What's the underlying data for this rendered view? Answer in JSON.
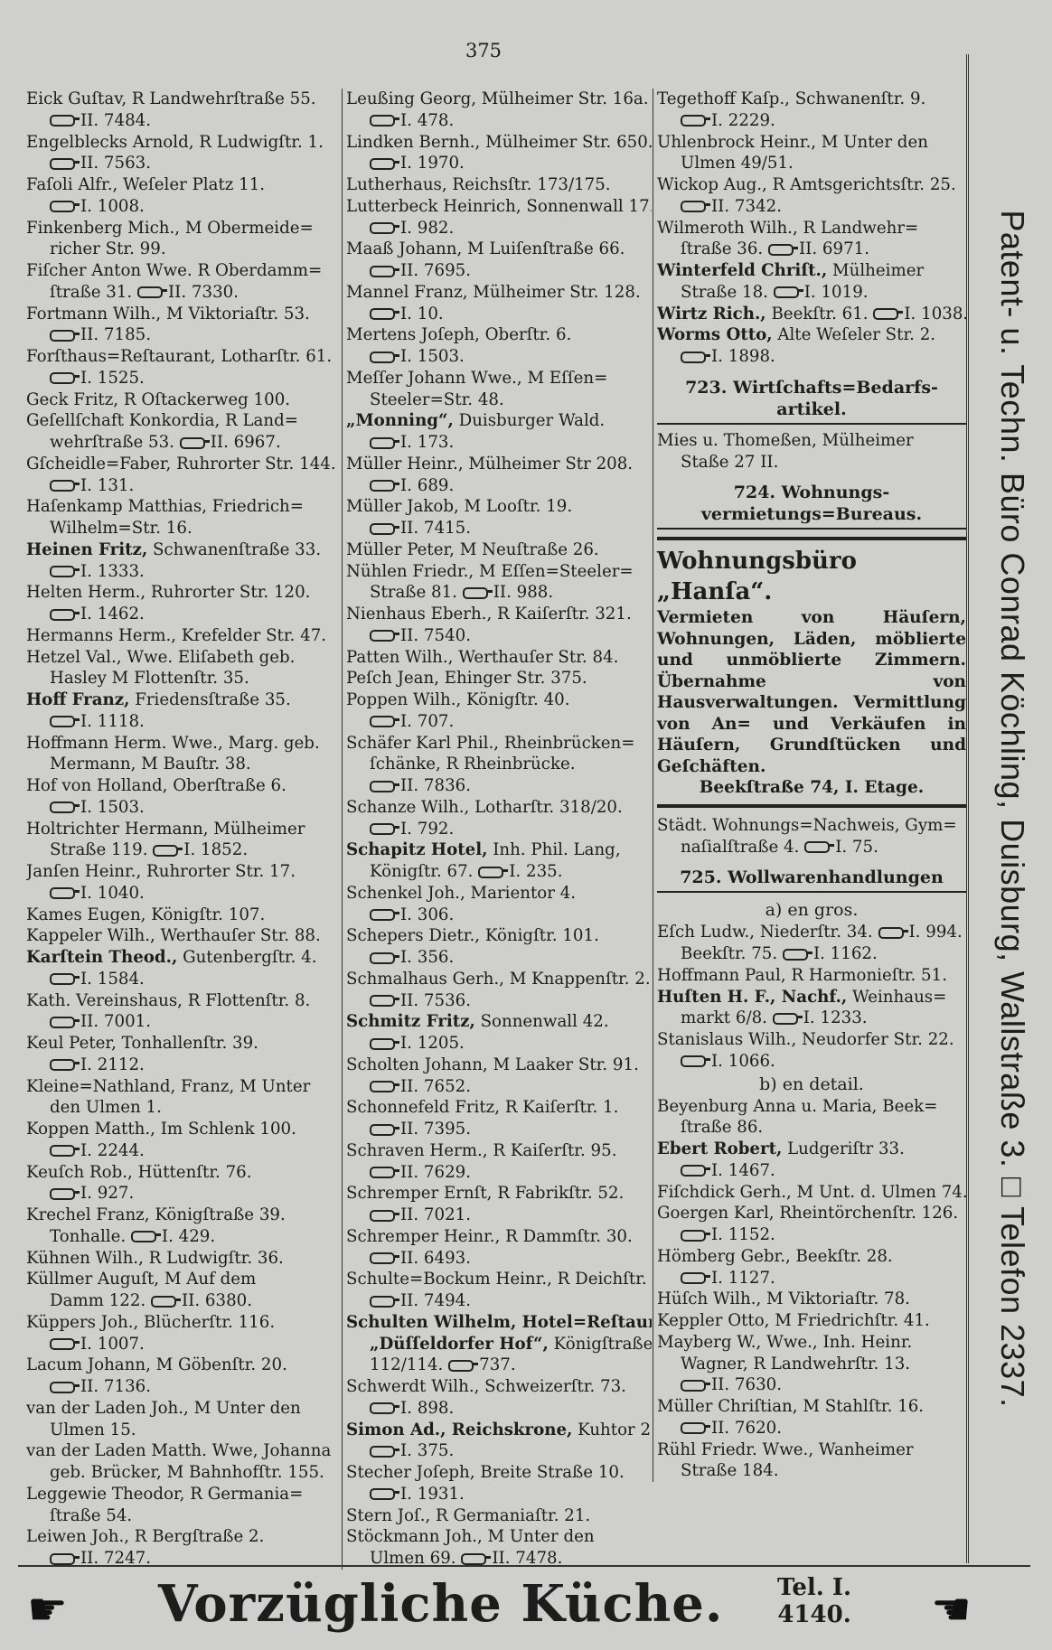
{
  "page_number": "375",
  "col1": [
    {
      "t": "Eick Guſtav, R Landwehrſtraße 55."
    },
    {
      "p": "II. 7484."
    },
    {
      "t": "Engelblecks Arnold, R Ludwigſtr. 1."
    },
    {
      "p": "II. 7563."
    },
    {
      "t": "Faſoli Alfr., Weſeler Platz 11."
    },
    {
      "p": "I. 1008."
    },
    {
      "t": "Finkenberg Mich., M Obermeide="
    },
    {
      "t": "richer Str. 99.",
      "i": 1
    },
    {
      "t": "Fiſcher Anton Wwe. R Oberdamm="
    },
    {
      "t": "ſtraße 31.",
      "p": "II. 7330.",
      "i": 1
    },
    {
      "t": "Fortmann Wilh., M Viktoriaſtr. 53."
    },
    {
      "p": "II. 7185."
    },
    {
      "t": "Forſthaus=Reſtaurant, Lotharſtr. 61."
    },
    {
      "p": "I. 1525."
    },
    {
      "t": "Geck Fritz, R Oſtackerweg 100."
    },
    {
      "t": "Geſellſchaft Konkordia, R Land="
    },
    {
      "t": "wehrſtraße 53.",
      "p": "II. 6967.",
      "i": 1
    },
    {
      "t": "Gſcheidle=Faber, Ruhrorter Str. 144."
    },
    {
      "p": "I. 131."
    },
    {
      "t": "Haſenkamp Matthias, Friedrich="
    },
    {
      "t": "Wilhelm=Str. 16.",
      "i": 1
    },
    {
      "b": "Heinen Fritz,",
      "t": " Schwanenſtraße 33."
    },
    {
      "p": "I. 1333."
    },
    {
      "t": "Helten Herm., Ruhrorter Str. 120."
    },
    {
      "p": "I. 1462."
    },
    {
      "t": "Hermanns Herm., Krefelder Str. 47."
    },
    {
      "t": "Hetzel Val., Wwe. Eliſabeth geb."
    },
    {
      "t": "Hasley M Flottenſtr. 35.",
      "i": 1
    },
    {
      "b": "Hoff Franz,",
      "t": " Friedensſtraße 35."
    },
    {
      "p": "I. 1118."
    },
    {
      "t": "Hoffmann Herm. Wwe., Marg. geb."
    },
    {
      "t": "Mermann, M Bauſtr. 38.",
      "i": 1
    },
    {
      "t": "Hof von Holland, Oberſtraße 6."
    },
    {
      "p": "I. 1503."
    },
    {
      "t": "Holtrichter Hermann, Mülheimer"
    },
    {
      "t": "Straße 119.",
      "p": "I. 1852.",
      "i": 1
    },
    {
      "t": "Janſen Heinr., Ruhrorter Str. 17."
    },
    {
      "p": "I. 1040."
    },
    {
      "t": "Kames Eugen, Königſtr. 107."
    },
    {
      "t": "Kappeler Wilh., Werthauſer Str. 88."
    },
    {
      "b": "Karſtein Theod.,",
      "t": " Gutenbergſtr. 4."
    },
    {
      "p": "I. 1584."
    },
    {
      "t": "Kath. Vereinshaus, R Flottenſtr. 8."
    },
    {
      "p": "II. 7001."
    },
    {
      "t": "Keul Peter, Tonhallenſtr. 39."
    },
    {
      "p": "I. 2112."
    },
    {
      "t": "Kleine=Nathland, Franz, M Unter"
    },
    {
      "t": "den Ulmen 1.",
      "i": 1
    },
    {
      "t": "Koppen Matth., Im Schlenk 100."
    },
    {
      "p": "I. 2244."
    },
    {
      "t": "Keuſch Rob., Hüttenſtr. 76."
    },
    {
      "p": "I. 927."
    },
    {
      "t": "Krechel Franz, Königſtraße 39."
    },
    {
      "t": "Tonhalle.",
      "p": "I. 429.",
      "i": 1
    },
    {
      "t": "Kühnen Wilh., R Ludwigſtr. 36."
    },
    {
      "t": "Küllmer Auguſt, M Auf dem"
    },
    {
      "t": "Damm 122.",
      "p": "II. 6380.",
      "i": 1
    },
    {
      "t": "Küppers Joh., Blücherſtr. 116."
    },
    {
      "p": "I. 1007."
    },
    {
      "t": "Lacum Johann, M Göbenſtr. 20."
    },
    {
      "p": "II. 7136."
    },
    {
      "t": "van der Laden Joh., M Unter den"
    },
    {
      "t": "Ulmen 15.",
      "i": 1
    },
    {
      "t": "van der Laden Matth. Wwe, Johanna"
    },
    {
      "t": "geb. Brücker, M Bahnhofſtr. 155.",
      "i": 1
    },
    {
      "t": "Leggewie Theodor, R Germania="
    },
    {
      "t": "ſtraße 54.",
      "i": 1
    },
    {
      "t": "Leiwen Joh., R Bergſtraße 2."
    },
    {
      "p": "II. 7247."
    }
  ],
  "col2": [
    {
      "t": "Leußing Georg, Mülheimer Str. 16a."
    },
    {
      "p": "I. 478."
    },
    {
      "t": "Lindken Bernh., Mülheimer Str. 650."
    },
    {
      "p": "I. 1970."
    },
    {
      "t": "Lutherhaus, Reichsſtr. 173/175."
    },
    {
      "t": "Lutterbeck Heinrich, Sonnenwall 17."
    },
    {
      "p": "I. 982."
    },
    {
      "t": "Maaß Johann, M Luiſenſtraße 66."
    },
    {
      "p": "II. 7695."
    },
    {
      "t": "Mannel Franz, Mülheimer Str. 128."
    },
    {
      "p": "I. 10."
    },
    {
      "t": "Mertens Joſeph, Oberſtr. 6."
    },
    {
      "p": "I. 1503."
    },
    {
      "t": "Meſſer Johann Wwe., M Eſſen="
    },
    {
      "t": "Steeler=Str. 48.",
      "i": 1
    },
    {
      "b": "„Monning“,",
      "t": " Duisburger Wald."
    },
    {
      "p": "I. 173."
    },
    {
      "t": "Müller Heinr., Mülheimer Str 208."
    },
    {
      "p": "I. 689."
    },
    {
      "t": "Müller Jakob, M Looſtr. 19."
    },
    {
      "p": "II. 7415."
    },
    {
      "t": "Müller Peter, M Neuſtraße 26."
    },
    {
      "t": "Nühlen Friedr., M Eſſen=Steeler="
    },
    {
      "t": "Straße 81.",
      "p": "II. 988.",
      "i": 1
    },
    {
      "t": "Nienhaus Eberh., R Kaiſerſtr. 321."
    },
    {
      "p": "II. 7540."
    },
    {
      "t": "Patten Wilh., Werthauſer Str. 84."
    },
    {
      "t": "Peſch Jean, Ehinger Str. 375."
    },
    {
      "t": "Poppen Wilh., Königſtr. 40."
    },
    {
      "p": "I. 707."
    },
    {
      "t": "Schäfer Karl Phil., Rheinbrücken="
    },
    {
      "t": "ſchänke, R Rheinbrücke.",
      "i": 1
    },
    {
      "p": "II. 7836."
    },
    {
      "t": "Schanze Wilh., Lotharſtr. 318/20."
    },
    {
      "p": "I. 792."
    },
    {
      "b": "Schapitz Hotel,",
      "t": " Inh. Phil. Lang,"
    },
    {
      "t": "Königſtr. 67.",
      "p": "I. 235.",
      "i": 1
    },
    {
      "t": "Schenkel Joh., Marientor 4."
    },
    {
      "p": "I. 306."
    },
    {
      "t": "Schepers Dietr., Königſtr. 101."
    },
    {
      "p": "I. 356."
    },
    {
      "t": "Schmalhaus Gerh., M Knappenſtr. 2."
    },
    {
      "p": "II. 7536."
    },
    {
      "b": "Schmitz Fritz,",
      "t": " Sonnenwall 42."
    },
    {
      "p": "I. 1205."
    },
    {
      "t": "Scholten Johann, M Laaker Str. 91."
    },
    {
      "p": "II. 7652."
    },
    {
      "t": "Schonnefeld Fritz, R Kaiſerſtr. 1."
    },
    {
      "p": "II. 7395."
    },
    {
      "t": "Schraven Herm., R Kaiſerſtr. 95."
    },
    {
      "p": "II. 7629."
    },
    {
      "t": "Schremper Ernſt, R Fabrikſtr. 52."
    },
    {
      "p": "II. 7021."
    },
    {
      "t": "Schremper Heinr., R Dammſtr. 30."
    },
    {
      "p": "II. 6493."
    },
    {
      "t": "Schulte=Bockum Heinr., R Deichſtr. 45"
    },
    {
      "p": "II. 7494."
    },
    {
      "b": "Schulten Wilhelm, Hotel=Reſtaur."
    },
    {
      "b": "„Düſſeldorfer Hof“,",
      "t": " Königſtraße",
      "i": 1
    },
    {
      "t": "112/114.",
      "p": "737.",
      "i": 1
    },
    {
      "t": "Schwerdt Wilh., Schweizerſtr. 73."
    },
    {
      "p": "I. 898."
    },
    {
      "b": "Simon Ad., Reichskrone,",
      "t": " Kuhtor 2."
    },
    {
      "p": "I. 375."
    },
    {
      "t": "Stecher Joſeph, Breite Straße 10."
    },
    {
      "p": "I. 1931."
    },
    {
      "t": "Stern Joſ., R Germaniaſtr. 21."
    },
    {
      "t": "Stöckmann Joh., M Unter den"
    },
    {
      "t": "Ulmen 69.",
      "p": "II. 7478.",
      "i": 1
    }
  ],
  "col3_top": [
    {
      "t": "Tegethoff Kaſp., Schwanenſtr. 9."
    },
    {
      "p": "I. 2229."
    },
    {
      "t": "Uhlenbrock Heinr., M Unter den"
    },
    {
      "t": "Ulmen 49/51.",
      "i": 1
    },
    {
      "t": "Wickop Aug., R Amtsgerichtsſtr. 25."
    },
    {
      "p": "II. 7342."
    },
    {
      "t": "Wilmeroth Wilh., R Landwehr="
    },
    {
      "t": "ſtraße 36.",
      "p": "II. 6971.",
      "i": 1
    },
    {
      "b": "Winterfeld Chriſt.,",
      "t": " Mülheimer"
    },
    {
      "t": "Straße 18.",
      "p": "I. 1019.",
      "i": 1
    },
    {
      "b": "Wirtz Rich.,",
      "t": " Beekſtr. 61.",
      "p": "I. 1038."
    },
    {
      "b": "Worms Otto,",
      "t": " Alte Weſeler Str. 2."
    },
    {
      "p": "I. 1898."
    }
  ],
  "section_723": {
    "title": "723. Wirtſchafts=Bedarfs-",
    "title2": "artikel."
  },
  "col3_723": [
    {
      "t": "Mies u. Thomeßen, Mülheimer"
    },
    {
      "t": "Staße 27 II.",
      "i": 1
    }
  ],
  "section_724": {
    "title": "724. Wohnungs-",
    "title2": "vermietungs=Bureaus."
  },
  "ad_hansa": {
    "title": "Wohnungsbüro „Hanſa“.",
    "body": "Vermieten von Häuſern, Wohnungen, Läden, möblierte und unmöblierte Zimmern. Übernahme von Hausverwaltungen. Vermittlung von An= und Verkäufen in Häuſern, Grundſtücken und Geſchäften.",
    "address": "Beekſtraße 74, I. Etage."
  },
  "col3_724": [
    {
      "t": "Städt. Wohnungs=Nachweis, Gym="
    },
    {
      "t": "naſialſtraße 4.",
      "p": "I. 75.",
      "i": 1
    }
  ],
  "section_725": {
    "title": "725. Wollwarenhandlungen",
    "sub_a": "a) en gros.",
    "sub_b": "b) en detail."
  },
  "col3_725a": [
    {
      "t": "Eſch Ludw., Niederſtr. 34.",
      "p": "I. 994."
    },
    {
      "t": "Beekſtr. 75.",
      "p": "I. 1162.",
      "i": 1
    },
    {
      "t": "Hoffmann Paul, R Harmonieſtr. 51."
    },
    {
      "b": "Huſten H. F., Nachf.,",
      "t": " Weinhaus="
    },
    {
      "t": "markt 6/8.",
      "p": "I. 1233.",
      "i": 1
    },
    {
      "t": "Stanislaus Wilh., Neudorfer Str. 22."
    },
    {
      "p": "I. 1066."
    }
  ],
  "col3_725b": [
    {
      "t": "Beyenburg Anna u. Maria, Beek="
    },
    {
      "t": "ſtraße 86.",
      "i": 1
    },
    {
      "b": "Ebert Robert,",
      "t": " Ludgeriſtr 33."
    },
    {
      "p": "I. 1467."
    },
    {
      "t": "Fiſchdick Gerh., M Unt. d. Ulmen 74."
    },
    {
      "t": "Goergen Karl, Rheintörchenſtr. 126."
    },
    {
      "p": "I. 1152."
    },
    {
      "t": "Hömberg Gebr., Beekſtr. 28."
    },
    {
      "p": "I. 1127."
    },
    {
      "t": "Hüſch Wilh., M Viktoriaſtr. 78."
    },
    {
      "t": "Keppler Otto, M Friedrichſtr. 41."
    },
    {
      "t": "Mayberg W., Wwe., Inh. Heinr."
    },
    {
      "t": "Wagner, R Landwehrſtr. 13.",
      "i": 1
    },
    {
      "p": "II. 7630."
    },
    {
      "t": "Müller Chriſtian, M Stahlſtr. 16."
    },
    {
      "p": "II. 7620."
    },
    {
      "t": "Rühl Friedr. Wwe., Wanheimer"
    },
    {
      "t": "Straße 184.",
      "i": 1
    }
  ],
  "sidebar_ad": "Patent- u. Techn. Büro Conrad Köchling, Duisburg, Wallstraße 3. □ Telefon 2337.",
  "footer": {
    "text": "Vorzügliche Küche.",
    "tel_label": "Tel. I.",
    "tel_number": "4140."
  },
  "icons": {
    "phone": "telephone-icon",
    "hand": "pointing-hand-icon"
  }
}
